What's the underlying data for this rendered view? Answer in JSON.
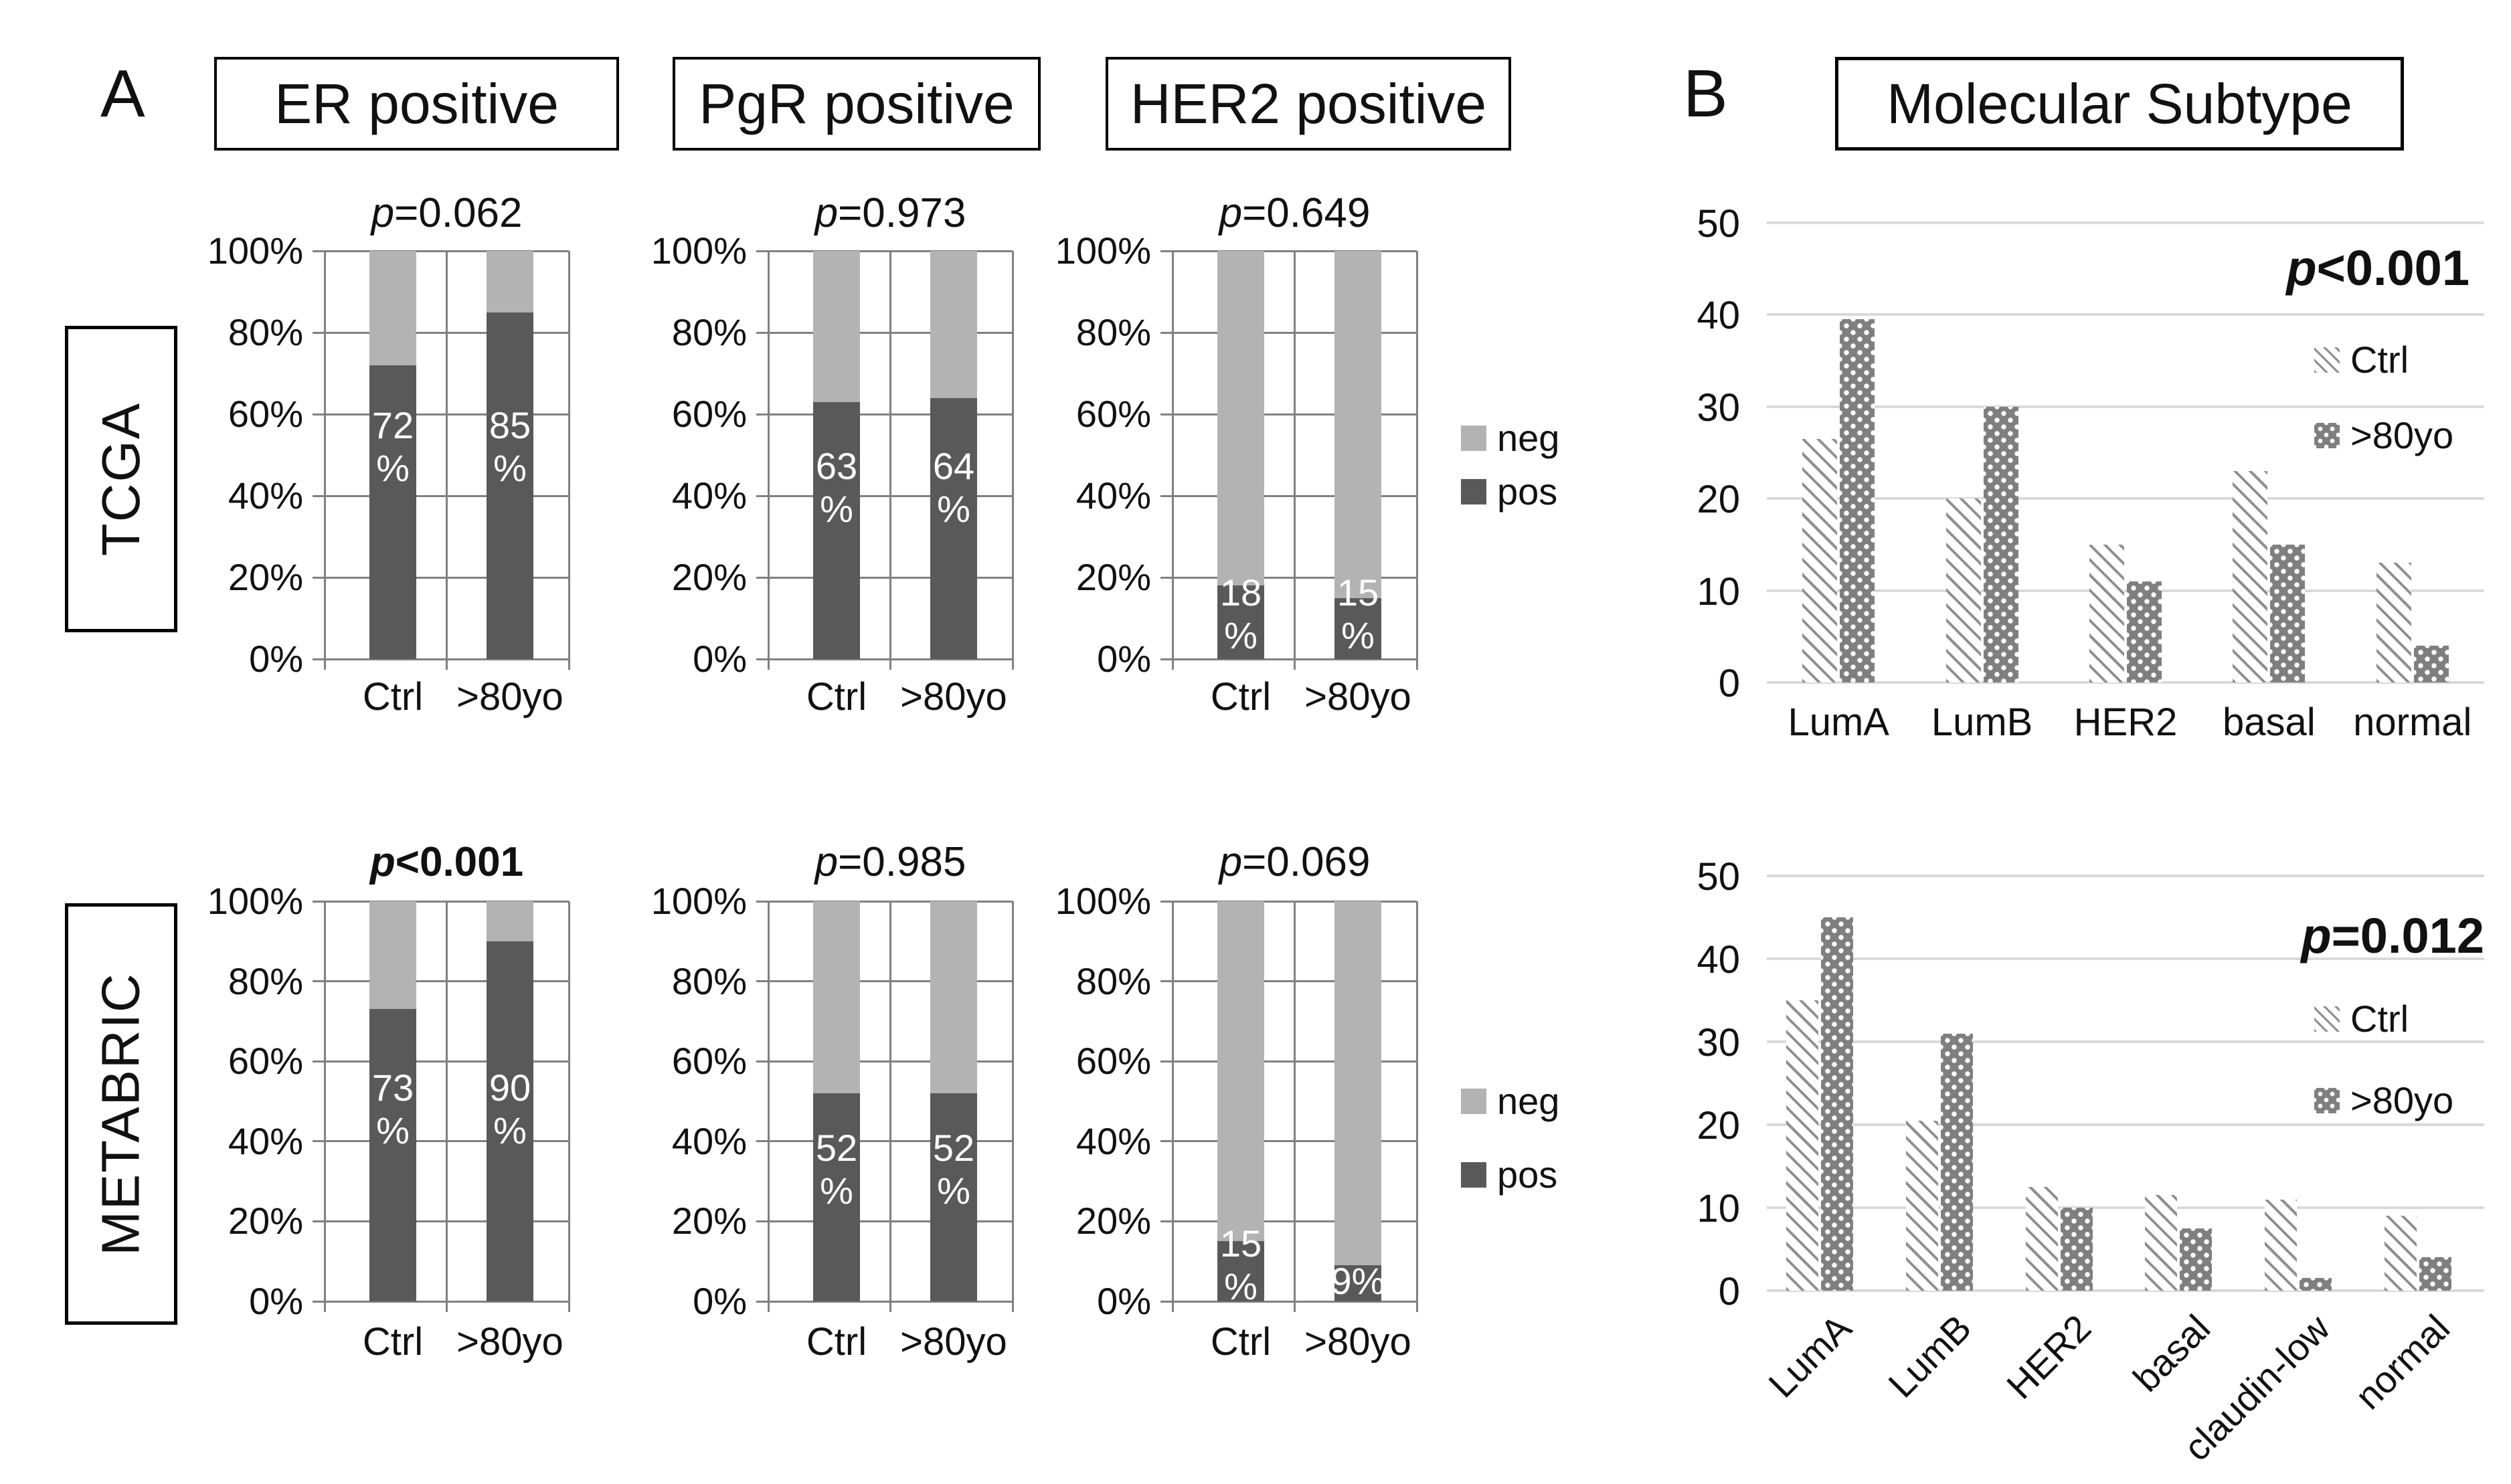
{
  "figure": {
    "panelA": {
      "label": "A",
      "headers": [
        "ER positive",
        "PgR positive",
        "HER2 positive"
      ],
      "row_labels": [
        "TCGA",
        "METABRIC"
      ],
      "legend": {
        "neg": "neg",
        "pos": "pos"
      }
    },
    "panelB": {
      "label": "B",
      "header": "Molecular Subtype",
      "legend": {
        "ctrl": "Ctrl",
        "over80": ">80yo"
      }
    },
    "colors": {
      "pos_fill": "#595959",
      "neg_fill": "#b3b3b3",
      "grid_a": "#808080",
      "grid_b": "#d9d9d9",
      "hatch_line": "#8f8f8f",
      "dot_base": "#7f7f7f",
      "text": "#111111"
    }
  },
  "chart_data": [
    {
      "id": "tcga-er",
      "panel": "A",
      "row": "TCGA",
      "group": "ER positive",
      "type": "bar",
      "variant": "stacked-100",
      "p_value": "p=0.062",
      "p_bold": false,
      "categories": [
        "Ctrl",
        ">80yo"
      ],
      "yticks": [
        "0%",
        "20%",
        "40%",
        "60%",
        "80%",
        "100%"
      ],
      "series": [
        {
          "name": "pos",
          "values": [
            72,
            85
          ]
        },
        {
          "name": "neg",
          "values": [
            28,
            15
          ]
        }
      ],
      "bar_labels": [
        "72\n%",
        "85\n%"
      ],
      "label_y": [
        52,
        52
      ]
    },
    {
      "id": "tcga-pgr",
      "panel": "A",
      "row": "TCGA",
      "group": "PgR positive",
      "type": "bar",
      "variant": "stacked-100",
      "p_value": "p=0.973",
      "p_bold": false,
      "categories": [
        "Ctrl",
        ">80yo"
      ],
      "yticks": [
        "0%",
        "20%",
        "40%",
        "60%",
        "80%",
        "100%"
      ],
      "series": [
        {
          "name": "pos",
          "values": [
            63,
            64
          ]
        },
        {
          "name": "neg",
          "values": [
            37,
            36
          ]
        }
      ],
      "bar_labels": [
        "63\n%",
        "64\n%"
      ],
      "label_y": [
        42,
        42
      ]
    },
    {
      "id": "tcga-her2",
      "panel": "A",
      "row": "TCGA",
      "group": "HER2 positive",
      "type": "bar",
      "variant": "stacked-100",
      "p_value": "p=0.649",
      "p_bold": false,
      "categories": [
        "Ctrl",
        ">80yo"
      ],
      "yticks": [
        "0%",
        "20%",
        "40%",
        "60%",
        "80%",
        "100%"
      ],
      "series": [
        {
          "name": "pos",
          "values": [
            18,
            15
          ]
        },
        {
          "name": "neg",
          "values": [
            82,
            85
          ]
        }
      ],
      "bar_labels": [
        "18\n%",
        "15\n%"
      ],
      "label_y": [
        11,
        11
      ]
    },
    {
      "id": "metabric-er",
      "panel": "A",
      "row": "METABRIC",
      "group": "ER positive",
      "type": "bar",
      "variant": "stacked-100",
      "p_value": "p<0.001",
      "p_bold": true,
      "categories": [
        "Ctrl",
        ">80yo"
      ],
      "yticks": [
        "0%",
        "20%",
        "40%",
        "60%",
        "80%",
        "100%"
      ],
      "series": [
        {
          "name": "pos",
          "values": [
            73,
            90
          ]
        },
        {
          "name": "neg",
          "values": [
            27,
            10
          ]
        }
      ],
      "bar_labels": [
        "73\n%",
        "90\n%"
      ],
      "label_y": [
        48,
        48
      ]
    },
    {
      "id": "metabric-pgr",
      "panel": "A",
      "row": "METABRIC",
      "group": "PgR positive",
      "type": "bar",
      "variant": "stacked-100",
      "p_value": "p=0.985",
      "p_bold": false,
      "categories": [
        "Ctrl",
        ">80yo"
      ],
      "yticks": [
        "0%",
        "20%",
        "40%",
        "60%",
        "80%",
        "100%"
      ],
      "series": [
        {
          "name": "pos",
          "values": [
            52,
            52
          ]
        },
        {
          "name": "neg",
          "values": [
            48,
            48
          ]
        }
      ],
      "bar_labels": [
        "52\n%",
        "52\n%"
      ],
      "label_y": [
        33,
        33
      ]
    },
    {
      "id": "metabric-her2",
      "panel": "A",
      "row": "METABRIC",
      "group": "HER2 positive",
      "type": "bar",
      "variant": "stacked-100",
      "p_value": "p=0.069",
      "p_bold": false,
      "categories": [
        "Ctrl",
        ">80yo"
      ],
      "yticks": [
        "0%",
        "20%",
        "40%",
        "60%",
        "80%",
        "100%"
      ],
      "series": [
        {
          "name": "pos",
          "values": [
            15,
            9
          ]
        },
        {
          "name": "neg",
          "values": [
            85,
            91
          ]
        }
      ],
      "bar_labels": [
        "15\n%",
        "9%"
      ],
      "label_y": [
        9,
        5
      ]
    },
    {
      "id": "tcga-subtype",
      "panel": "B",
      "row": "TCGA",
      "group": "Molecular Subtype",
      "type": "bar",
      "variant": "grouped",
      "p_value": "p<0.001",
      "p_bold": true,
      "categories": [
        "LumA",
        "LumB",
        "HER2",
        "basal",
        "normal"
      ],
      "ylim": [
        0,
        50
      ],
      "yticks": [
        0,
        10,
        20,
        30,
        40,
        50
      ],
      "series": [
        {
          "name": "Ctrl",
          "values": [
            26.5,
            20,
            15,
            23,
            13
          ]
        },
        {
          "name": ">80yo",
          "values": [
            39.5,
            30,
            11,
            15,
            4
          ]
        }
      ],
      "rotated_labels": false
    },
    {
      "id": "metabric-subtype",
      "panel": "B",
      "row": "METABRIC",
      "group": "Molecular Subtype",
      "type": "bar",
      "variant": "grouped",
      "p_value": "p=0.012",
      "p_bold": true,
      "categories": [
        "LumA",
        "LumB",
        "HER2",
        "basal",
        "claudin-low",
        "normal"
      ],
      "ylim": [
        0,
        50
      ],
      "yticks": [
        0,
        10,
        20,
        30,
        40,
        50
      ],
      "series": [
        {
          "name": "Ctrl",
          "values": [
            35,
            20.5,
            12.5,
            11.5,
            11,
            9
          ]
        },
        {
          "name": ">80yo",
          "values": [
            45,
            31,
            10,
            7.5,
            1.5,
            4
          ]
        }
      ],
      "rotated_labels": true
    }
  ]
}
